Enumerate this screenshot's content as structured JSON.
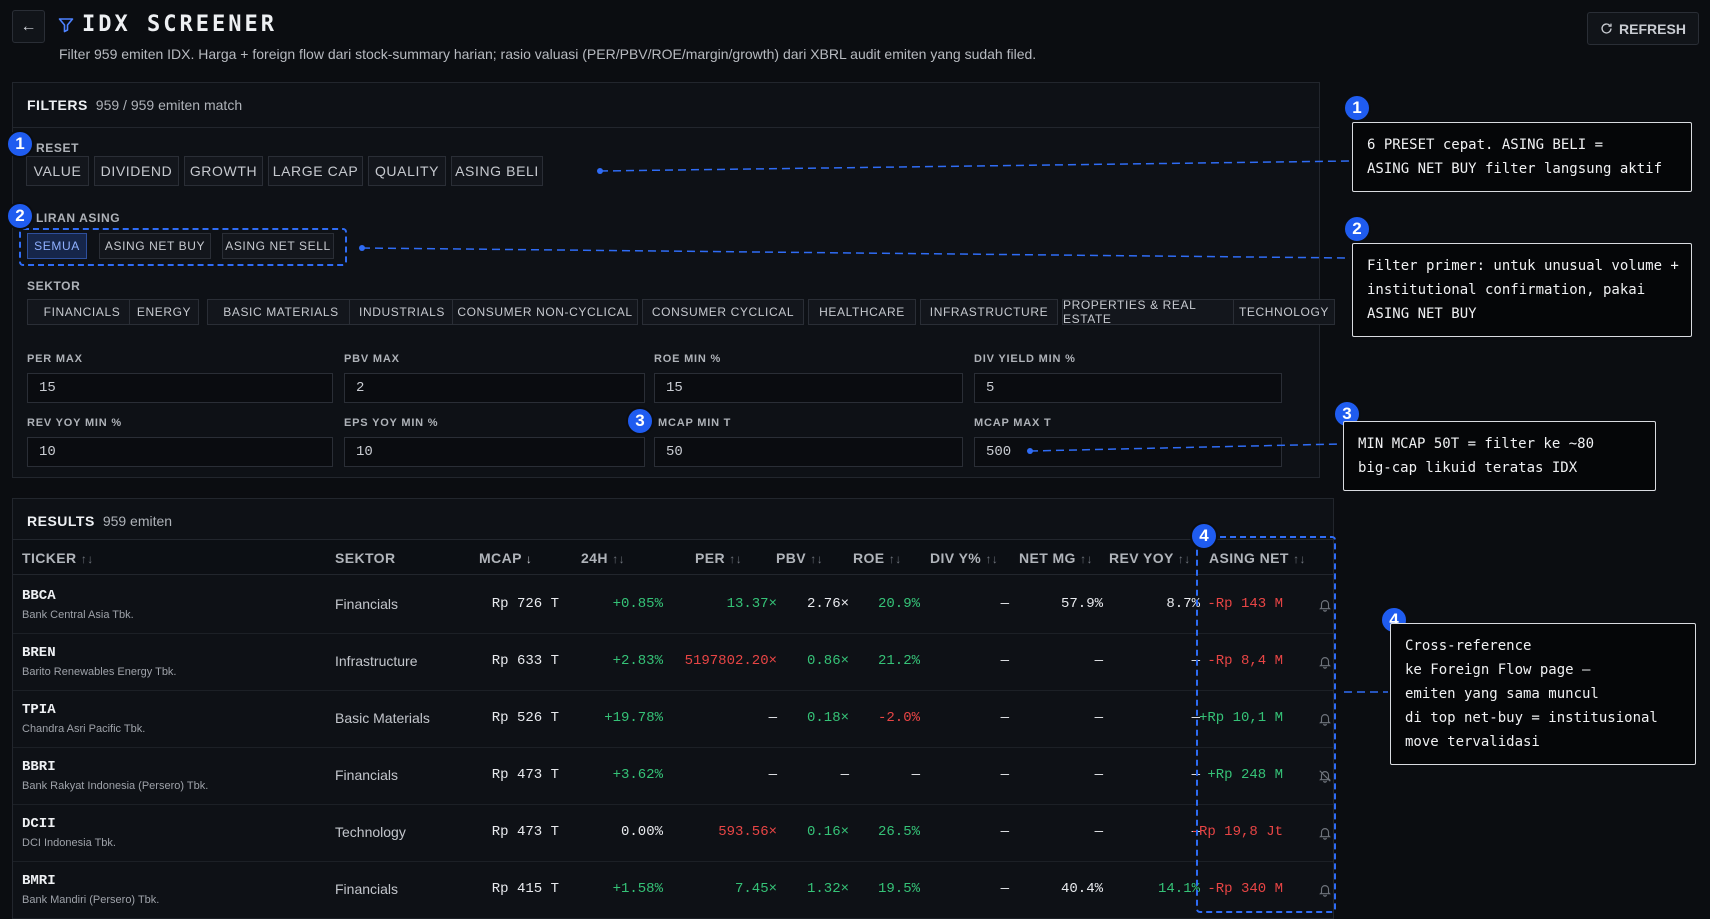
{
  "header": {
    "back_glyph": "←",
    "title": "IDX SCREENER",
    "subtitle": "Filter 959 emiten IDX. Harga + foreign flow dari stock-summary harian; rasio valuasi (PER/PBV/ROE/margin/growth) dari XBRL audit emiten yang sudah filed.",
    "refresh_label": "REFRESH"
  },
  "filters": {
    "title": "FILTERS",
    "match_text": "959 / 959 emiten match",
    "preset_label": "RESET",
    "presets": [
      "VALUE",
      "DIVIDEND",
      "GROWTH",
      "LARGE CAP",
      "QUALITY",
      "ASING BELI"
    ],
    "aliran_label": "LIRAN ASING",
    "aliran": [
      "SEMUA",
      "ASING NET BUY",
      "ASING NET SELL"
    ],
    "sektor_label": "SEKTOR",
    "sektor": [
      "FINANCIALS",
      "ENERGY",
      "BASIC MATERIALS",
      "INDUSTRIALS",
      "CONSUMER NON-CYCLICAL",
      "CONSUMER CYCLICAL",
      "HEALTHCARE",
      "INFRASTRUCTURE",
      "PROPERTIES & REAL ESTATE",
      "TECHNOLOGY"
    ],
    "fields": {
      "per_max": {
        "label": "PER MAX",
        "value": "15"
      },
      "pbv_max": {
        "label": "PBV MAX",
        "value": "2"
      },
      "roe_min": {
        "label": "ROE MIN %",
        "value": "15"
      },
      "div_yield_min": {
        "label": "DIV YIELD MIN %",
        "value": "5"
      },
      "rev_yoy_min": {
        "label": "REV YOY MIN %",
        "value": "10"
      },
      "eps_yoy_min": {
        "label": "EPS YOY MIN %",
        "value": "10"
      },
      "mcap_min": {
        "label": "MCAP MIN T",
        "value": "50"
      },
      "mcap_max": {
        "label": "MCAP MAX T",
        "value": "500"
      }
    }
  },
  "results": {
    "title": "RESULTS",
    "count_text": "959 emiten",
    "columns": {
      "ticker": "TICKER",
      "sektor": "SEKTOR",
      "mcap": "MCAP",
      "h24": "24H",
      "per": "PER",
      "pbv": "PBV",
      "roe": "ROE",
      "div": "DIV Y%",
      "netmg": "NET MG",
      "revyoy": "REV YOY",
      "asing": "ASING NET"
    },
    "sort_glyph": "↑↓",
    "sort_active_glyph": "↓",
    "rows": [
      {
        "ticker": "BBCA",
        "name": "Bank Central Asia Tbk.",
        "sektor": "Financials",
        "mcap": "Rp 726 T",
        "h24": "+0.85%",
        "h24_tone": "pos",
        "per": "13.37×",
        "per_tone": "pos",
        "pbv": "2.76×",
        "pbv_tone": "wht",
        "roe": "20.9%",
        "roe_tone": "pos",
        "div": "—",
        "netmg": "57.9%",
        "netmg_tone": "wht",
        "revyoy": "8.7%",
        "revyoy_tone": "wht",
        "asing": "-Rp 143 M",
        "asing_tone": "neg",
        "alert": "on"
      },
      {
        "ticker": "BREN",
        "name": "Barito Renewables Energy Tbk.",
        "sektor": "Infrastructure",
        "mcap": "Rp 633 T",
        "h24": "+2.83%",
        "h24_tone": "pos",
        "per": "5197802.20×",
        "per_tone": "neg",
        "pbv": "0.86×",
        "pbv_tone": "pos",
        "roe": "21.2%",
        "roe_tone": "pos",
        "div": "—",
        "netmg": "—",
        "netmg_tone": "wht",
        "revyoy": "—",
        "revyoy_tone": "wht",
        "asing": "-Rp 8,4 M",
        "asing_tone": "neg",
        "alert": "on"
      },
      {
        "ticker": "TPIA",
        "name": "Chandra Asri Pacific Tbk.",
        "sektor": "Basic Materials",
        "mcap": "Rp 526 T",
        "h24": "+19.78%",
        "h24_tone": "pos",
        "per": "—",
        "per_tone": "wht",
        "pbv": "0.18×",
        "pbv_tone": "pos",
        "roe": "-2.0%",
        "roe_tone": "neg",
        "div": "—",
        "netmg": "—",
        "netmg_tone": "wht",
        "revyoy": "—",
        "revyoy_tone": "wht",
        "asing": "+Rp 10,1 M",
        "asing_tone": "pos",
        "alert": "on"
      },
      {
        "ticker": "BBRI",
        "name": "Bank Rakyat Indonesia (Persero) Tbk.",
        "sektor": "Financials",
        "mcap": "Rp 473 T",
        "h24": "+3.62%",
        "h24_tone": "pos",
        "per": "—",
        "per_tone": "wht",
        "pbv": "—",
        "pbv_tone": "wht",
        "roe": "—",
        "roe_tone": "wht",
        "div": "—",
        "netmg": "—",
        "netmg_tone": "wht",
        "revyoy": "—",
        "revyoy_tone": "wht",
        "asing": "+Rp 248 M",
        "asing_tone": "pos",
        "alert": "off"
      },
      {
        "ticker": "DCII",
        "name": "DCI Indonesia Tbk.",
        "sektor": "Technology",
        "mcap": "Rp 473 T",
        "h24": "0.00%",
        "h24_tone": "wht",
        "per": "593.56×",
        "per_tone": "neg",
        "pbv": "0.16×",
        "pbv_tone": "pos",
        "roe": "26.5%",
        "roe_tone": "pos",
        "div": "—",
        "netmg": "—",
        "netmg_tone": "wht",
        "revyoy": "—",
        "revyoy_tone": "wht",
        "asing": "-Rp 19,8 Jt",
        "asing_tone": "neg",
        "alert": "on"
      },
      {
        "ticker": "BMRI",
        "name": "Bank Mandiri (Persero) Tbk.",
        "sektor": "Financials",
        "mcap": "Rp 415 T",
        "h24": "+1.58%",
        "h24_tone": "pos",
        "per": "7.45×",
        "per_tone": "pos",
        "pbv": "1.32×",
        "pbv_tone": "pos",
        "roe": "19.5%",
        "roe_tone": "pos",
        "div": "—",
        "netmg": "40.4%",
        "netmg_tone": "wht",
        "revyoy": "14.1%",
        "revyoy_tone": "pos",
        "asing": "-Rp 340 M",
        "asing_tone": "neg",
        "alert": "on"
      }
    ]
  },
  "annotations": [
    {
      "num": "1",
      "text": "6 PRESET cepat. ASING BELI =\nASING NET BUY filter langsung aktif"
    },
    {
      "num": "2",
      "text": "Filter primer: untuk unusual volume +\ninstitutional confirmation, pakai\nASING NET BUY"
    },
    {
      "num": "3",
      "text": "MIN MCAP 50T = filter ke ~80\nbig-cap likuid teratas IDX"
    },
    {
      "num": "4",
      "text": "Cross-reference\nke Foreign Flow page —\nemiten yang sama muncul\ndi top net-buy = institusional\nmove tervalidasi"
    }
  ],
  "colors": {
    "accent": "#2f6cf5",
    "positive": "#35c277",
    "negative": "#e84545"
  },
  "icons": {
    "back": "arrow-left-icon",
    "title": "filter-icon",
    "refresh": "refresh-icon",
    "alert": "bell-icon",
    "alert_off": "bell-off-icon"
  }
}
